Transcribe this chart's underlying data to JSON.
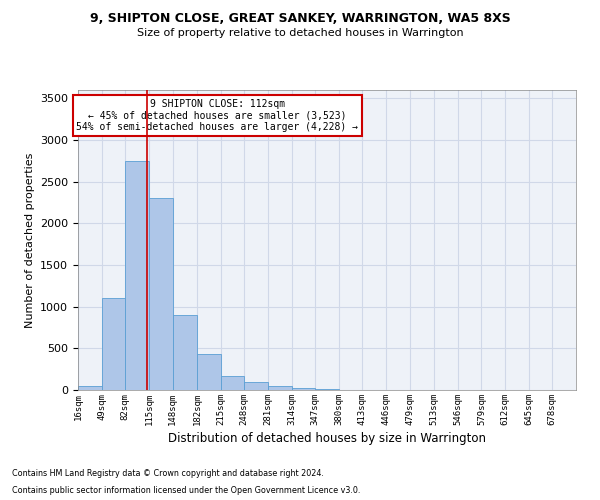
{
  "title1": "9, SHIPTON CLOSE, GREAT SANKEY, WARRINGTON, WA5 8XS",
  "title2": "Size of property relative to detached houses in Warrington",
  "xlabel": "Distribution of detached houses by size in Warrington",
  "ylabel": "Number of detached properties",
  "footnote1": "Contains HM Land Registry data © Crown copyright and database right 2024.",
  "footnote2": "Contains public sector information licensed under the Open Government Licence v3.0.",
  "annotation_line1": "9 SHIPTON CLOSE: 112sqm",
  "annotation_line2": "← 45% of detached houses are smaller (3,523)",
  "annotation_line3": "54% of semi-detached houses are larger (4,228) →",
  "bar_left_edges": [
    16,
    49,
    82,
    115,
    148,
    182,
    215,
    248,
    281,
    314,
    347,
    380,
    413,
    446,
    479,
    513,
    546,
    579,
    612,
    645
  ],
  "bar_widths": [
    33,
    33,
    33,
    33,
    34,
    33,
    33,
    33,
    33,
    33,
    33,
    33,
    33,
    33,
    33,
    33,
    33,
    33,
    33,
    33
  ],
  "bar_heights": [
    50,
    1100,
    2750,
    2300,
    900,
    430,
    170,
    100,
    50,
    30,
    10,
    5,
    3,
    2,
    2,
    1,
    1,
    0,
    0,
    0
  ],
  "bar_color": "#aec6e8",
  "bar_edge_color": "#5a9fd4",
  "red_line_x": 112,
  "ylim": [
    0,
    3600
  ],
  "yticks": [
    0,
    500,
    1000,
    1500,
    2000,
    2500,
    3000,
    3500
  ],
  "xtick_labels": [
    "16sqm",
    "49sqm",
    "82sqm",
    "115sqm",
    "148sqm",
    "182sqm",
    "215sqm",
    "248sqm",
    "281sqm",
    "314sqm",
    "347sqm",
    "380sqm",
    "413sqm",
    "446sqm",
    "479sqm",
    "513sqm",
    "546sqm",
    "579sqm",
    "612sqm",
    "645sqm",
    "678sqm"
  ],
  "annotation_box_color": "#ffffff",
  "annotation_box_edge": "#cc0000",
  "grid_color": "#d0d8e8",
  "background_color": "#eef2f8"
}
